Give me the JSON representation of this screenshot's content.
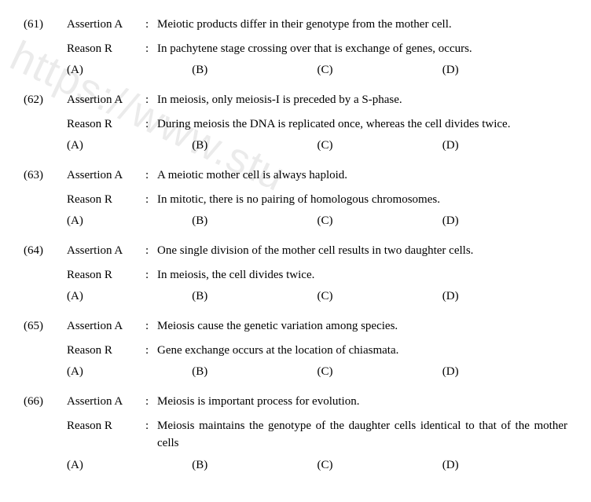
{
  "watermark": "https://www.stu",
  "questions": [
    {
      "num": "(61)",
      "assertion_label": "Assertion A",
      "reason_label": "Reason R",
      "colon": ":",
      "assertion": "Meiotic products differ in their genotype from the mother cell.",
      "reason": "In pachytene stage crossing over that is exchange of genes, occurs.",
      "options": [
        "(A)",
        "(B)",
        "(C)",
        "(D)"
      ]
    },
    {
      "num": "(62)",
      "assertion_label": "Assertion A",
      "reason_label": "Reason R",
      "colon": ":",
      "assertion": "In meiosis, only meiosis-I is preceded by a S-phase.",
      "reason": "During meiosis the DNA is replicated once, whereas the cell divides twice.",
      "options": [
        "(A)",
        "(B)",
        "(C)",
        "(D)"
      ]
    },
    {
      "num": "(63)",
      "assertion_label": "Assertion A",
      "reason_label": "Reason R",
      "colon": ":",
      "assertion": "A meiotic mother cell is always haploid.",
      "reason": "In mitotic, there is no pairing of homologous chromosomes.",
      "options": [
        "(A)",
        "(B)",
        "(C)",
        "(D)"
      ]
    },
    {
      "num": "(64)",
      "assertion_label": "Assertion A",
      "reason_label": "Reason R",
      "colon": ":",
      "assertion": "One single division of the mother cell results in two daughter cells.",
      "reason": "In meiosis, the cell divides twice.",
      "options": [
        "(A)",
        "(B)",
        "(C)",
        "(D)"
      ]
    },
    {
      "num": "(65)",
      "assertion_label": "Assertion A",
      "reason_label": "Reason R",
      "colon": ":",
      "assertion": "Meiosis cause the genetic variation among species.",
      "reason": "Gene exchange occurs at the location of chiasmata.",
      "options": [
        "(A)",
        "(B)",
        "(C)",
        "(D)"
      ]
    },
    {
      "num": "(66)",
      "assertion_label": "Assertion A",
      "reason_label": "Reason R",
      "colon": ":",
      "assertion": "Meiosis is important process for evolution.",
      "reason": "Meiosis maintains the genotype of the daughter cells identical to that of the mother cells",
      "options": [
        "(A)",
        "(B)",
        "(C)",
        "(D)"
      ]
    }
  ]
}
